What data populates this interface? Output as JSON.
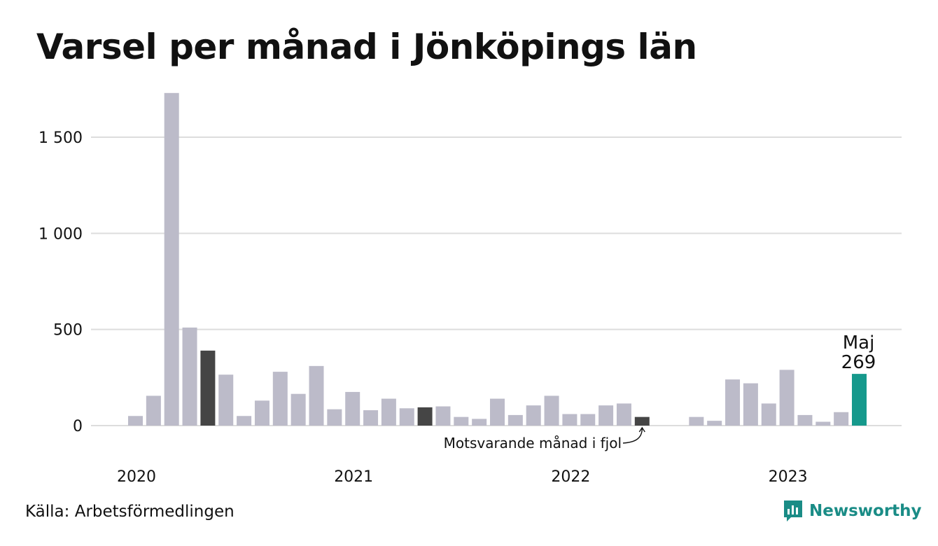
{
  "title": "Varsel per månad i Jönköpings län",
  "source": "Källa: Arbetsförmedlingen",
  "brand": {
    "name": "Newsworthy",
    "icon": "newsworthy-logo-icon"
  },
  "colors": {
    "default": "#bcbbc9",
    "comparison": "#454545",
    "highlight": "#16998c",
    "grid": "#dddddd",
    "brand": "#1a8c86"
  },
  "chart_data": {
    "type": "bar",
    "ylim": [
      0,
      1750
    ],
    "yticks": [
      0,
      500,
      1000,
      1500
    ],
    "ytick_labels": [
      "0",
      "500",
      "1 000",
      "1 500"
    ],
    "xtick_labels": [
      {
        "label": "2020",
        "index": 0
      },
      {
        "label": "2021",
        "index": 12
      },
      {
        "label": "2022",
        "index": 24
      },
      {
        "label": "2023",
        "index": 36
      }
    ],
    "grid": true,
    "values": [
      50,
      155,
      1730,
      510,
      390,
      265,
      50,
      130,
      280,
      165,
      310,
      85,
      175,
      80,
      140,
      90,
      95,
      100,
      45,
      35,
      140,
      55,
      105,
      155,
      60,
      60,
      105,
      115,
      45,
      null,
      null,
      45,
      25,
      240,
      220,
      115,
      290,
      55,
      20,
      70,
      269
    ],
    "comparison_indices": [
      4,
      16,
      28
    ],
    "highlight_index": 40,
    "annotations": {
      "highlight_month": "Maj",
      "highlight_value": "269",
      "comparison": "Motsvarande månad i fjol"
    }
  }
}
